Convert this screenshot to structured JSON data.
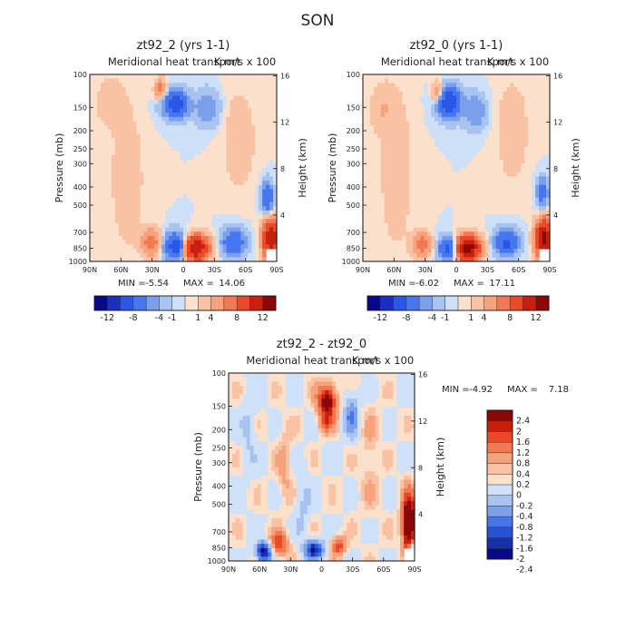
{
  "figure_title": "SON",
  "colors": {
    "neg": [
      "#08088a",
      "#1a2fc0",
      "#2c56e6",
      "#4677f0",
      "#7aa0ec",
      "#a9c3f0",
      "#cde0f8"
    ],
    "pos": [
      "#fbe0cc",
      "#f9c3a3",
      "#f6a27c",
      "#f27a52",
      "#e84a2a",
      "#c8200e",
      "#8c0707"
    ],
    "diff_neg": [
      "#08088a",
      "#1630b0",
      "#2a52d8",
      "#4776ec",
      "#7ca0ec",
      "#a9c3f0",
      "#cfe1f8"
    ],
    "diff_pos": [
      "#fbe0cc",
      "#f9c3a3",
      "#f6a27c",
      "#f27a52",
      "#ea4a26",
      "#c82008",
      "#8a0707"
    ]
  },
  "chart_data": [
    {
      "type": "heatmap",
      "title": "zt92_2 (yrs 1-1)",
      "subtitle": "Meridional heat transport",
      "units": "K m/s x 100",
      "ylabel": "Pressure (mb)",
      "ylabel_right": "Height (km)",
      "x_ticks": [
        "90N",
        "60N",
        "30N",
        "0",
        "30S",
        "60S",
        "90S"
      ],
      "y_ticks": [
        "100",
        "150",
        "200",
        "250",
        "300",
        "400",
        "500",
        "700",
        "850",
        "1000"
      ],
      "y_ticks_right": [
        "16",
        "12",
        "8",
        "4"
      ],
      "ylim": [
        1000,
        100
      ],
      "xlim": [
        90,
        -90
      ],
      "min_label": "MIN =",
      "min_value": "-5.54",
      "max_label": "MAX =",
      "max_value": "14.06",
      "colorbar_labels": [
        "-12",
        "-8",
        "-4",
        "-1",
        "1",
        "4",
        "8",
        "12"
      ],
      "grid": false
    },
    {
      "type": "heatmap",
      "title": "zt92_0 (yrs 1-1)",
      "subtitle": "Meridional heat transport",
      "units": "K m/s x 100",
      "ylabel": "Pressure (mb)",
      "ylabel_right": "Height (km)",
      "x_ticks": [
        "90N",
        "60N",
        "30N",
        "0",
        "30S",
        "60S",
        "90S"
      ],
      "y_ticks": [
        "100",
        "150",
        "200",
        "250",
        "300",
        "400",
        "500",
        "700",
        "850",
        "1000"
      ],
      "y_ticks_right": [
        "16",
        "12",
        "8",
        "4"
      ],
      "ylim": [
        1000,
        100
      ],
      "xlim": [
        90,
        -90
      ],
      "min_label": "MIN =",
      "min_value": "-6.02",
      "max_label": "MAX =",
      "max_value": "17.11",
      "colorbar_labels": [
        "-12",
        "-8",
        "-4",
        "-1",
        "1",
        "4",
        "8",
        "12"
      ],
      "grid": false
    },
    {
      "type": "heatmap",
      "title": "zt92_2 - zt92_0",
      "subtitle": "Meridional heat transport",
      "units": "K m/s x 100",
      "ylabel": "Pressure (mb)",
      "ylabel_right": "Height (km)",
      "x_ticks": [
        "90N",
        "60N",
        "30N",
        "0",
        "30S",
        "60S",
        "90S"
      ],
      "y_ticks": [
        "100",
        "150",
        "200",
        "250",
        "300",
        "400",
        "500",
        "700",
        "850",
        "1000"
      ],
      "y_ticks_right": [
        "16",
        "12",
        "8",
        "4"
      ],
      "ylim": [
        1000,
        100
      ],
      "xlim": [
        90,
        -90
      ],
      "min_label": "MIN =",
      "min_value": "-4.92",
      "max_label": "MAX =",
      "max_value": "7.18",
      "colorbar_labels": [
        "2.4",
        "2",
        "1.6",
        "1.2",
        "0.8",
        "0.4",
        "0.2",
        "0",
        "-0.2",
        "-0.4",
        "-0.8",
        "-1.2",
        "-1.6",
        "-2",
        "-2.4"
      ],
      "grid": false
    }
  ]
}
